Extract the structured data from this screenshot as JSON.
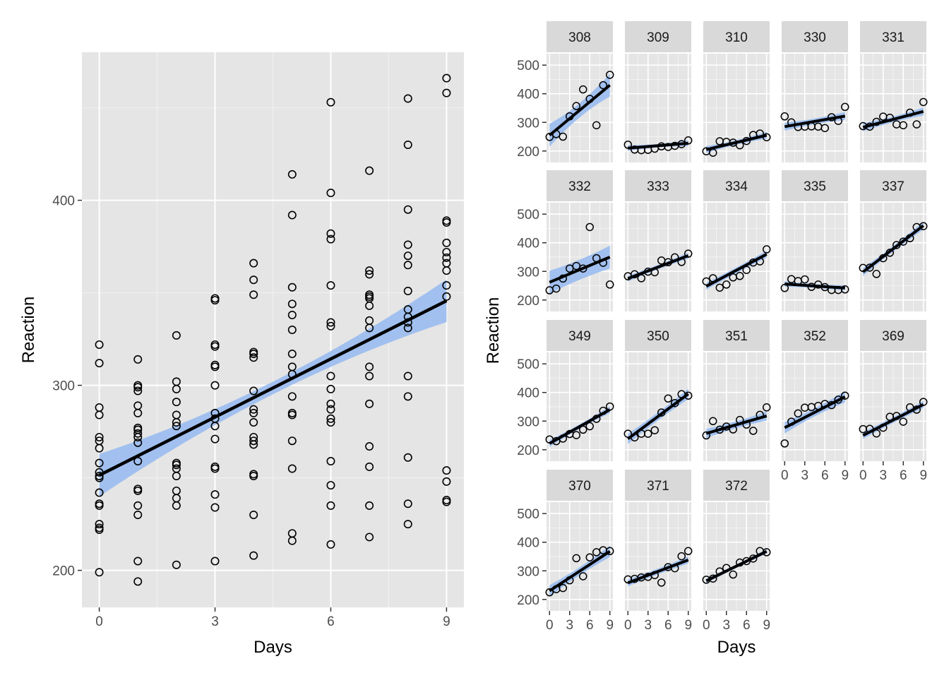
{
  "chart_data": [
    {
      "type": "scatter",
      "xlabel": "Days",
      "ylabel": "Reaction",
      "xlim": [
        -0.45,
        9.45
      ],
      "ylim": [
        180,
        480
      ],
      "xticks": [
        0,
        3,
        6,
        9
      ],
      "yticks": [
        200,
        300,
        400
      ],
      "grid": true,
      "overlay": "linear fit with 95% confidence band",
      "fit": {
        "x0": 0,
        "y0": 251.4,
        "x1": 9,
        "y1": 345.7
      },
      "band_halfwidth": {
        "x0": 11.5,
        "xmid": 3.4,
        "x9": 11.5
      },
      "colors": {
        "panel": "#e5e5e5",
        "band": "#99bbf0",
        "line": "#000000",
        "points": "#000000"
      },
      "series": [
        {
          "x": 0,
          "y": [
            250,
            258,
            322,
            312,
            288,
            284,
            272,
            270,
            266,
            253,
            251,
            242,
            236,
            235,
            225,
            222,
            223,
            199
          ]
        },
        {
          "x": 1,
          "y": [
            314,
            300,
            299,
            297,
            289,
            285,
            277,
            276,
            274,
            272,
            269,
            259,
            244,
            243,
            235,
            230,
            205,
            194
          ]
        },
        {
          "x": 2,
          "y": [
            327,
            302,
            298,
            291,
            284,
            280,
            278,
            258,
            257,
            255,
            251,
            243,
            239,
            235,
            203
          ]
        },
        {
          "x": 3,
          "y": [
            347,
            346,
            322,
            321,
            311,
            310,
            300,
            285,
            282,
            278,
            271,
            256,
            255,
            241,
            234,
            205
          ]
        },
        {
          "x": 4,
          "y": [
            366,
            357,
            349,
            318,
            317,
            315,
            297,
            287,
            285,
            280,
            272,
            270,
            268,
            252,
            251,
            230,
            208
          ]
        },
        {
          "x": 5,
          "y": [
            414,
            392,
            353,
            344,
            338,
            330,
            317,
            310,
            306,
            294,
            285,
            284,
            270,
            255,
            220,
            216
          ]
        },
        {
          "x": 6,
          "y": [
            453,
            404,
            382,
            379,
            354,
            334,
            332,
            305,
            298,
            290,
            287,
            282,
            280,
            259,
            246,
            235,
            214
          ]
        },
        {
          "x": 7,
          "y": [
            416,
            362,
            360,
            349,
            348,
            347,
            343,
            335,
            331,
            310,
            305,
            290,
            267,
            256,
            235,
            218
          ]
        },
        {
          "x": 8,
          "y": [
            455,
            430,
            395,
            376,
            370,
            365,
            351,
            341,
            337,
            334,
            331,
            305,
            294,
            261,
            236,
            225
          ]
        },
        {
          "x": 9,
          "y": [
            466,
            458,
            389,
            388,
            377,
            372,
            369,
            366,
            362,
            354,
            348,
            254,
            248,
            238,
            237
          ]
        }
      ]
    },
    {
      "type": "scatter",
      "layout": "small multiples",
      "xlabel": "Days",
      "ylabel": "Reaction",
      "xlim": [
        -0.45,
        9.45
      ],
      "ylim": [
        160,
        540
      ],
      "xticks": [
        0,
        3,
        6,
        9
      ],
      "yticks": [
        200,
        300,
        400,
        500
      ],
      "overlay": "linear fit per subject with 95% confidence band",
      "colors": {
        "panel": "#e5e5e5",
        "strip": "#d9d9d9",
        "band": "#99bbf0",
        "line": "#000000"
      },
      "panels": [
        {
          "subject": "308",
          "fit": [
            255,
            430
          ],
          "band": [
            25,
            40
          ],
          "y": [
            249,
            259,
            250,
            321,
            357,
            415,
            382,
            290,
            430,
            466
          ]
        },
        {
          "subject": "309",
          "fit": [
            210,
            227
          ],
          "band": [
            6,
            10
          ],
          "y": [
            222,
            205,
            203,
            204,
            208,
            216,
            214,
            218,
            224,
            237
          ]
        },
        {
          "subject": "310",
          "fit": [
            205,
            255
          ],
          "band": [
            8,
            12
          ],
          "y": [
            199,
            194,
            234,
            232,
            229,
            220,
            235,
            256,
            261,
            248
          ]
        },
        {
          "subject": "330",
          "fit": [
            285,
            322
          ],
          "band": [
            10,
            14
          ],
          "y": [
            321,
            300,
            284,
            285,
            286,
            285,
            280,
            318,
            305,
            354
          ]
        },
        {
          "subject": "331",
          "fit": [
            283,
            338
          ],
          "band": [
            10,
            14
          ],
          "y": [
            287,
            285,
            302,
            320,
            316,
            293,
            290,
            334,
            293,
            371
          ]
        },
        {
          "subject": "332",
          "fit": [
            262,
            350
          ],
          "band": [
            35,
            40
          ],
          "y": [
            234,
            240,
            275,
            310,
            319,
            310,
            455,
            346,
            330,
            254
          ]
        },
        {
          "subject": "333",
          "fit": [
            275,
            355
          ],
          "band": [
            8,
            10
          ],
          "y": [
            283,
            290,
            276,
            299,
            297,
            338,
            332,
            349,
            333,
            362
          ]
        },
        {
          "subject": "334",
          "fit": [
            248,
            360
          ],
          "band": [
            10,
            12
          ],
          "y": [
            265,
            276,
            243,
            254,
            279,
            284,
            305,
            331,
            335,
            377
          ]
        },
        {
          "subject": "335",
          "fit": [
            256,
            242
          ],
          "band": [
            7,
            9
          ],
          "y": [
            242,
            273,
            266,
            272,
            246,
            254,
            245,
            235,
            235,
            237
          ]
        },
        {
          "subject": "337",
          "fit": [
            298,
            460
          ],
          "band": [
            10,
            14
          ],
          "y": [
            312,
            313,
            291,
            346,
            365,
            392,
            404,
            416,
            455,
            458
          ]
        },
        {
          "subject": "349",
          "fit": [
            222,
            340
          ],
          "band": [
            8,
            12
          ],
          "y": [
            236,
            230,
            239,
            255,
            251,
            270,
            282,
            308,
            336,
            351
          ]
        },
        {
          "subject": "350",
          "fit": [
            238,
            395
          ],
          "band": [
            14,
            18
          ],
          "y": [
            256,
            243,
            256,
            256,
            268,
            330,
            379,
            363,
            394,
            389
          ]
        },
        {
          "subject": "351",
          "fit": [
            257,
            318
          ],
          "band": [
            12,
            16
          ],
          "y": [
            250,
            300,
            270,
            281,
            271,
            304,
            288,
            266,
            322,
            348
          ]
        },
        {
          "subject": "352",
          "fit": [
            277,
            385
          ],
          "band": [
            14,
            20
          ],
          "y": [
            222,
            298,
            327,
            347,
            349,
            353,
            360,
            356,
            375,
            389
          ]
        },
        {
          "subject": "369",
          "fit": [
            250,
            358
          ],
          "band": [
            10,
            12
          ],
          "y": [
            272,
            273,
            257,
            277,
            315,
            318,
            298,
            348,
            340,
            367
          ]
        },
        {
          "subject": "370",
          "fit": [
            230,
            368
          ],
          "band": [
            14,
            20
          ],
          "y": [
            225,
            236,
            240,
            267,
            344,
            281,
            347,
            365,
            372,
            369
          ]
        },
        {
          "subject": "371",
          "fit": [
            258,
            338
          ],
          "band": [
            10,
            12
          ],
          "y": [
            270,
            272,
            277,
            279,
            285,
            259,
            313,
            309,
            351,
            369
          ]
        },
        {
          "subject": "372",
          "fit": [
            265,
            368
          ],
          "band": [
            6,
            8
          ],
          "y": [
            269,
            273,
            298,
            310,
            287,
            329,
            334,
            343,
            369,
            365
          ]
        }
      ]
    }
  ]
}
